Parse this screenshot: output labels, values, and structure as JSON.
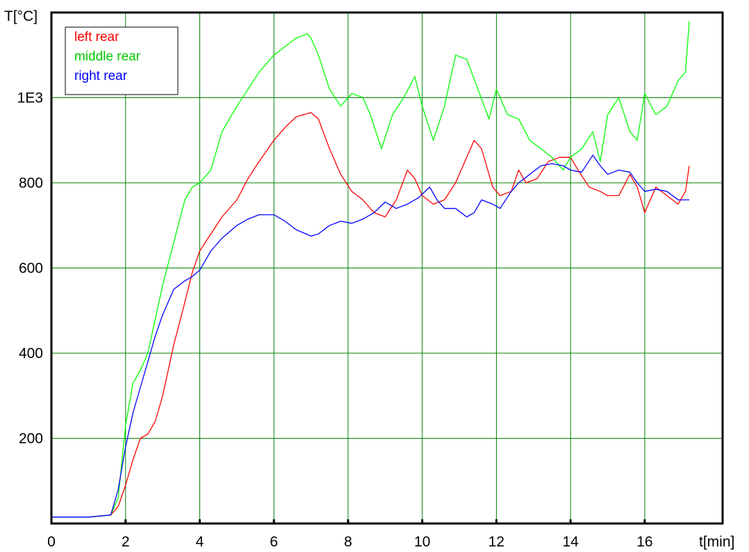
{
  "chart_data": {
    "type": "line",
    "ylabel": "T[°C]",
    "xlabel": "t[min]",
    "xlim": [
      0,
      18.1
    ],
    "ylim": [
      0,
      1200
    ],
    "x_ticks": [
      0,
      2,
      4,
      6,
      8,
      10,
      12,
      14,
      16
    ],
    "x_tick_labels": [
      "0",
      "2",
      "4",
      "6",
      "8",
      "10",
      "12",
      "14",
      "16"
    ],
    "y_ticks": [
      200,
      400,
      600,
      800,
      1000
    ],
    "y_tick_labels": [
      "200",
      "400",
      "600",
      "800",
      "1E3"
    ],
    "grid": true,
    "grid_color": "#008000",
    "legend_position": "top-left",
    "series": [
      {
        "name": "left rear",
        "color": "#ff0000",
        "x": [
          0,
          1.0,
          1.6,
          1.8,
          2.0,
          2.2,
          2.4,
          2.6,
          2.8,
          3.0,
          3.3,
          3.6,
          3.8,
          4.0,
          4.3,
          4.6,
          5.0,
          5.3,
          5.6,
          6.0,
          6.3,
          6.6,
          7.0,
          7.2,
          7.5,
          7.8,
          8.1,
          8.4,
          8.7,
          9.0,
          9.3,
          9.6,
          9.8,
          10.0,
          10.3,
          10.6,
          10.9,
          11.2,
          11.4,
          11.6,
          11.9,
          12.1,
          12.4,
          12.6,
          12.8,
          13.1,
          13.4,
          13.7,
          14.0,
          14.2,
          14.5,
          14.8,
          15.0,
          15.3,
          15.6,
          15.8,
          16.0,
          16.3,
          16.6,
          16.9,
          17.1,
          17.2
        ],
        "y": [
          15,
          15,
          20,
          40,
          90,
          150,
          200,
          210,
          240,
          300,
          420,
          520,
          590,
          640,
          680,
          720,
          760,
          810,
          850,
          900,
          930,
          955,
          965,
          950,
          880,
          820,
          780,
          760,
          730,
          720,
          760,
          830,
          810,
          770,
          750,
          760,
          800,
          860,
          900,
          880,
          790,
          770,
          780,
          830,
          800,
          810,
          850,
          860,
          860,
          830,
          790,
          780,
          770,
          770,
          820,
          790,
          730,
          790,
          770,
          750,
          780,
          840
        ]
      },
      {
        "name": "middle rear",
        "color": "#00ff00",
        "x": [
          0,
          1.0,
          1.6,
          1.8,
          2.0,
          2.2,
          2.4,
          2.6,
          2.8,
          3.0,
          3.3,
          3.6,
          3.8,
          4.0,
          4.3,
          4.6,
          5.0,
          5.3,
          5.6,
          6.0,
          6.3,
          6.6,
          6.9,
          7.0,
          7.2,
          7.5,
          7.8,
          8.1,
          8.4,
          8.6,
          8.9,
          9.2,
          9.5,
          9.8,
          10.0,
          10.3,
          10.6,
          10.9,
          11.2,
          11.5,
          11.8,
          12.0,
          12.3,
          12.6,
          12.9,
          13.2,
          13.5,
          13.8,
          14.0,
          14.3,
          14.6,
          14.8,
          15.0,
          15.3,
          15.6,
          15.8,
          16.0,
          16.3,
          16.6,
          16.9,
          17.1,
          17.2
        ],
        "y": [
          15,
          15,
          20,
          60,
          230,
          330,
          360,
          400,
          480,
          560,
          660,
          760,
          790,
          800,
          830,
          920,
          980,
          1020,
          1060,
          1100,
          1120,
          1140,
          1150,
          1140,
          1100,
          1020,
          980,
          1010,
          1000,
          960,
          880,
          960,
          1000,
          1050,
          980,
          900,
          980,
          1100,
          1090,
          1020,
          950,
          1020,
          960,
          950,
          900,
          880,
          860,
          830,
          860,
          880,
          920,
          850,
          960,
          1000,
          920,
          900,
          1010,
          960,
          980,
          1040,
          1060,
          1180
        ]
      },
      {
        "name": "right rear",
        "color": "#0000ff",
        "x": [
          0,
          1.0,
          1.6,
          1.8,
          2.0,
          2.2,
          2.4,
          2.6,
          2.8,
          3.0,
          3.3,
          3.6,
          3.8,
          4.0,
          4.3,
          4.6,
          5.0,
          5.3,
          5.6,
          6.0,
          6.3,
          6.6,
          7.0,
          7.2,
          7.5,
          7.8,
          8.1,
          8.4,
          8.7,
          9.0,
          9.3,
          9.6,
          9.9,
          10.2,
          10.4,
          10.6,
          10.9,
          11.2,
          11.4,
          11.6,
          11.9,
          12.1,
          12.4,
          12.6,
          12.9,
          13.2,
          13.5,
          13.8,
          14.0,
          14.3,
          14.6,
          14.8,
          15.0,
          15.3,
          15.6,
          15.8,
          16.0,
          16.3,
          16.6,
          16.9,
          17.1,
          17.2
        ],
        "y": [
          15,
          15,
          20,
          80,
          180,
          260,
          320,
          380,
          440,
          490,
          550,
          570,
          580,
          595,
          640,
          670,
          700,
          715,
          725,
          725,
          710,
          690,
          675,
          680,
          700,
          710,
          705,
          715,
          730,
          755,
          740,
          750,
          765,
          790,
          760,
          740,
          740,
          720,
          730,
          760,
          750,
          740,
          780,
          800,
          820,
          840,
          845,
          840,
          830,
          825,
          865,
          840,
          820,
          830,
          825,
          800,
          780,
          785,
          780,
          760,
          760,
          760
        ]
      }
    ]
  }
}
